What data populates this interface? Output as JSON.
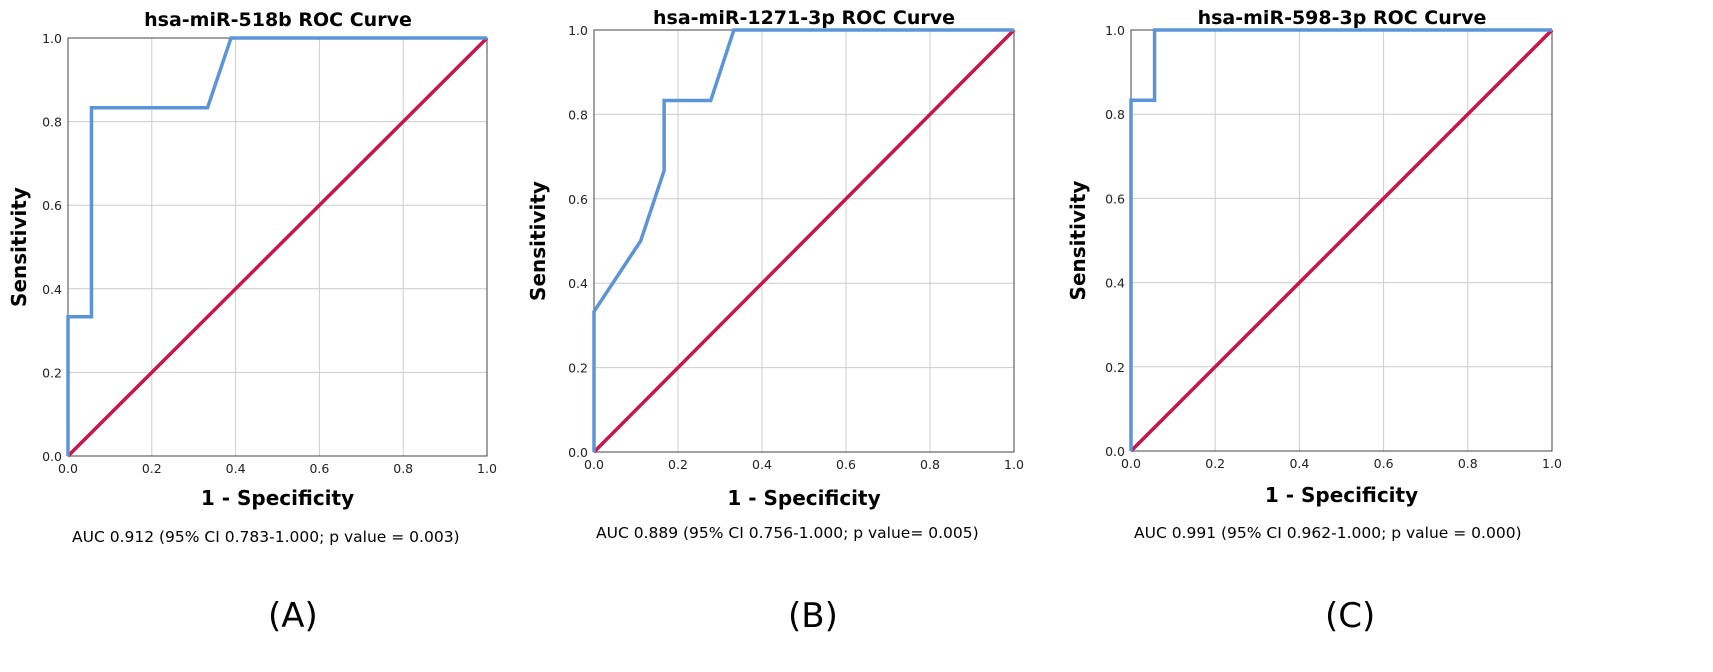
{
  "colors": {
    "roc": "#5b95d8",
    "reference": "#c8154a",
    "grid": "#cccccc",
    "frame": "#444444"
  },
  "chart_data": [
    {
      "type": "line",
      "title": "hsa-miR-518b ROC Curve",
      "xlabel": "1 - Specificity",
      "ylabel": "Sensitivity",
      "xlim": [
        0,
        1
      ],
      "ylim": [
        0,
        1
      ],
      "ticks": [
        "0.0",
        "0.2",
        "0.4",
        "0.6",
        "0.8",
        "1.0"
      ],
      "grid": true,
      "series": [
        {
          "x": [
            0,
            0,
            0.056,
            0.056,
            0.333,
            0.389,
            1.0
          ],
          "y": [
            0,
            0.333,
            0.333,
            0.833,
            0.833,
            1.0,
            1.0
          ]
        },
        {
          "x": [
            0,
            1
          ],
          "y": [
            0,
            1
          ]
        }
      ],
      "auc_text": "AUC 0.912 (95% CI 0.783-1.000; p value = 0.003)",
      "panel_label": "(A)"
    },
    {
      "type": "line",
      "title": "hsa-miR-1271-3p ROC Curve",
      "xlabel": "1 - Specificity",
      "ylabel": "Sensitivity",
      "xlim": [
        0,
        1
      ],
      "ylim": [
        0,
        1
      ],
      "ticks": [
        "0.0",
        "0.2",
        "0.4",
        "0.6",
        "0.8",
        "1.0"
      ],
      "grid": true,
      "series": [
        {
          "x": [
            0,
            0,
            0.111,
            0.167,
            0.167,
            0.278,
            0.333,
            1.0
          ],
          "y": [
            0,
            0.333,
            0.5,
            0.667,
            0.833,
            0.833,
            1.0,
            1.0
          ]
        },
        {
          "x": [
            0,
            1
          ],
          "y": [
            0,
            1
          ]
        }
      ],
      "auc_text": "AUC 0.889 (95% CI 0.756-1.000; p value= 0.005)",
      "panel_label": "(B)"
    },
    {
      "type": "line",
      "title": "hsa-miR-598-3p ROC Curve",
      "xlabel": "1 - Specificity",
      "ylabel": "Sensitivity",
      "xlim": [
        0,
        1
      ],
      "ylim": [
        0,
        1
      ],
      "ticks": [
        "0.0",
        "0.2",
        "0.4",
        "0.6",
        "0.8",
        "1.0"
      ],
      "grid": true,
      "series": [
        {
          "x": [
            0,
            0,
            0.056,
            0.056,
            1.0
          ],
          "y": [
            0,
            0.833,
            0.833,
            1.0,
            1.0
          ]
        },
        {
          "x": [
            0,
            1
          ],
          "y": [
            0,
            1
          ]
        }
      ],
      "auc_text": "AUC 0.991 (95% CI 0.962-1.000; p value = 0.000)",
      "panel_label": "(C)"
    }
  ]
}
